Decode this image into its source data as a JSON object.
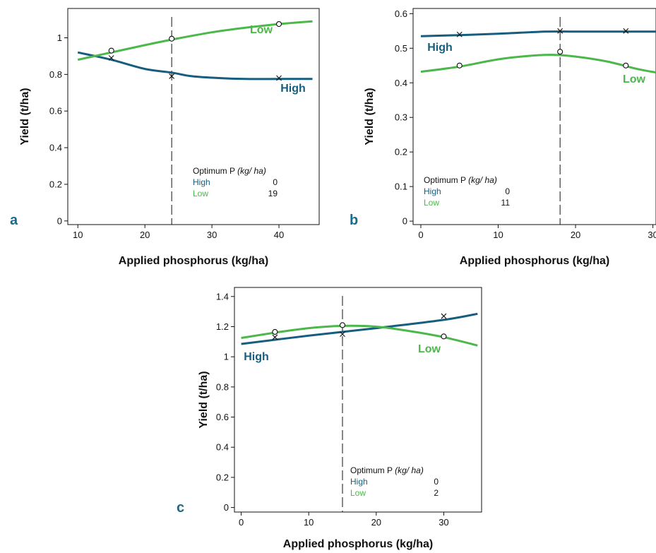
{
  "colors": {
    "high": "#175e7e",
    "low": "#4cb74a",
    "axis": "#111111",
    "panel_letter": "#1a6b8c"
  },
  "chart_data": [
    {
      "type": "line",
      "panel_label": "a",
      "xlabel": "Applied phosphorus (kg/ha)",
      "ylabel": "Yield (t/ha)",
      "xlim": [
        8.5,
        46
      ],
      "ylim": [
        -0.02,
        1.16
      ],
      "x_ticks": [
        "10",
        "20",
        "30",
        "40"
      ],
      "y_ticks": [
        "0",
        "0.2",
        "0.4",
        "0.6",
        "0.8",
        "1"
      ],
      "optimum_x": 24,
      "series": [
        {
          "name": "High",
          "line": {
            "x": [
              10,
              15,
              20,
              24,
              27,
              31,
              35,
              40,
              45
            ],
            "y": [
              0.92,
              0.88,
              0.83,
              0.81,
              0.79,
              0.78,
              0.775,
              0.775,
              0.775
            ]
          },
          "observed": {
            "x": [
              15,
              24,
              40
            ],
            "y": [
              0.89,
              0.79,
              0.78
            ],
            "marker": "x"
          }
        },
        {
          "name": "Low",
          "line": {
            "x": [
              10,
              15,
              20,
              24,
              30,
              35,
              40,
              45
            ],
            "y": [
              0.88,
              0.92,
              0.96,
              0.99,
              1.03,
              1.055,
              1.075,
              1.09
            ]
          },
          "observed": {
            "x": [
              15,
              24,
              40
            ],
            "y": [
              0.93,
              0.995,
              1.075
            ],
            "marker": "o"
          }
        }
      ],
      "legend": {
        "title": "Optimum P",
        "unit": "(kg/ ha)",
        "rows": [
          {
            "label": "High",
            "value": "0"
          },
          {
            "label": "Low",
            "value": "19"
          }
        ]
      }
    },
    {
      "type": "line",
      "panel_label": "b",
      "xlabel": "Applied phosphorus (kg/ha)",
      "ylabel": "Yield (t/ha)",
      "xlim": [
        -1,
        30.4
      ],
      "ylim": [
        -0.01,
        0.615
      ],
      "x_ticks": [
        "0",
        "10",
        "20",
        "30"
      ],
      "y_ticks": [
        "0",
        "0.1",
        "0.2",
        "0.3",
        "0.4",
        "0.5",
        "0.6"
      ],
      "optimum_x": 18,
      "series": [
        {
          "name": "High",
          "line": {
            "x": [
              0,
              5,
              10,
              16,
              20,
              26,
              30.4
            ],
            "y": [
              0.535,
              0.538,
              0.542,
              0.548,
              0.548,
              0.548,
              0.548
            ]
          },
          "observed": {
            "x": [
              5,
              18,
              26.5
            ],
            "y": [
              0.54,
              0.55,
              0.55
            ],
            "marker": "x"
          }
        },
        {
          "name": "Low",
          "line": {
            "x": [
              0,
              5,
              10,
              14,
              17,
              20,
              24,
              28,
              30.4
            ],
            "y": [
              0.432,
              0.447,
              0.468,
              0.478,
              0.481,
              0.476,
              0.462,
              0.44,
              0.43
            ]
          },
          "observed": {
            "x": [
              5,
              18,
              26.5
            ],
            "y": [
              0.45,
              0.49,
              0.45
            ],
            "marker": "o"
          }
        }
      ],
      "legend": {
        "title": "Optimum P",
        "unit": "(kg/ ha)",
        "rows": [
          {
            "label": "High",
            "value": "0"
          },
          {
            "label": "Low",
            "value": "11"
          }
        ]
      }
    },
    {
      "type": "line",
      "panel_label": "c",
      "xlabel": "Applied phosphorus (kg/ha)",
      "ylabel": "Yield (t/ha)",
      "xlim": [
        -1,
        35.6
      ],
      "ylim": [
        -0.03,
        1.46
      ],
      "x_ticks": [
        "0",
        "10",
        "20",
        "30"
      ],
      "y_ticks": [
        "0",
        "0.2",
        "0.4",
        "0.6",
        "0.8",
        "1",
        "1.2",
        "1.4"
      ],
      "optimum_x": 15,
      "series": [
        {
          "name": "High",
          "line": {
            "x": [
              0,
              10,
              20,
              30,
              35
            ],
            "y": [
              1.085,
              1.14,
              1.19,
              1.245,
              1.285
            ]
          },
          "observed": {
            "x": [
              5,
              15,
              30
            ],
            "y": [
              1.13,
              1.15,
              1.27
            ],
            "marker": "x"
          }
        },
        {
          "name": "Low",
          "line": {
            "x": [
              0,
              5,
              10,
              15,
              20,
              25,
              30,
              35
            ],
            "y": [
              1.125,
              1.16,
              1.19,
              1.205,
              1.2,
              1.17,
              1.13,
              1.075
            ]
          },
          "observed": {
            "x": [
              5,
              15,
              30
            ],
            "y": [
              1.165,
              1.21,
              1.135
            ],
            "marker": "o"
          }
        }
      ],
      "legend": {
        "title": "Optimum P",
        "unit": "(kg/ ha)",
        "rows": [
          {
            "label": "High",
            "value": "0"
          },
          {
            "label": "Low",
            "value": "2"
          }
        ]
      }
    }
  ]
}
